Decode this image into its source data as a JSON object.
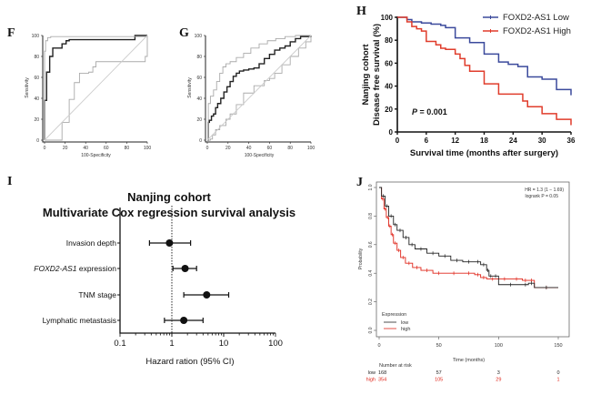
{
  "chart_data": [
    {
      "panel": "F",
      "type": "line",
      "subtype": "roc",
      "xlabel": "100-Specificity",
      "ylabel": "Sensitivity",
      "xlim": [
        0,
        100
      ],
      "ylim": [
        0,
        100
      ],
      "xticks": [
        "0",
        "20",
        "40",
        "60",
        "80",
        "100"
      ],
      "yticks": [
        "0",
        "20",
        "40",
        "60",
        "80",
        "100"
      ],
      "series": [
        {
          "name": "roc",
          "color": "#222222",
          "x": [
            0,
            0,
            2,
            2,
            5,
            5,
            8,
            8,
            11,
            11,
            17,
            17,
            21,
            21,
            24,
            24,
            88,
            88,
            100
          ],
          "y": [
            0,
            38,
            38,
            65,
            65,
            80,
            80,
            88,
            88,
            88,
            88,
            92,
            92,
            95,
            95,
            96,
            96,
            100,
            100
          ]
        },
        {
          "name": "ci-upper",
          "color": "#aaaaaa",
          "x": [
            0,
            0,
            1,
            1,
            3,
            3,
            6,
            100
          ],
          "y": [
            0,
            85,
            85,
            95,
            95,
            98,
            99,
            100
          ]
        },
        {
          "name": "ci-lower",
          "color": "#aaaaaa",
          "x": [
            0,
            17,
            17,
            24,
            24,
            29,
            29,
            34,
            34,
            43,
            43,
            47,
            47,
            50,
            50,
            98,
            98,
            100,
            100
          ],
          "y": [
            0,
            0,
            17,
            17,
            39,
            39,
            55,
            55,
            64,
            64,
            65,
            65,
            70,
            70,
            75,
            75,
            80,
            80,
            100
          ]
        },
        {
          "name": "reference",
          "color": "#cccccc",
          "x": [
            0,
            100
          ],
          "y": [
            0,
            100
          ]
        }
      ]
    },
    {
      "panel": "G",
      "type": "line",
      "subtype": "roc",
      "xlabel": "100-Specificity",
      "ylabel": "Sensitivity",
      "xlim": [
        0,
        100
      ],
      "ylim": [
        0,
        100
      ],
      "xticks": [
        "0",
        "20",
        "40",
        "60",
        "80",
        "100"
      ],
      "yticks": [
        "0",
        "20",
        "40",
        "60",
        "80",
        "100"
      ],
      "series": [
        {
          "name": "roc",
          "color": "#222222",
          "x": [
            0,
            1,
            2,
            4,
            6,
            8,
            10,
            13,
            16,
            19,
            22,
            25,
            28,
            31,
            35,
            40,
            45,
            50,
            55,
            60,
            65,
            70,
            75,
            80,
            85,
            90,
            100
          ],
          "y": [
            0,
            17,
            19,
            23,
            25,
            31,
            35,
            40,
            46,
            51,
            56,
            61,
            64,
            66,
            67,
            68,
            69,
            73,
            78,
            82,
            86,
            88,
            90,
            94,
            97,
            99,
            100
          ]
        },
        {
          "name": "ci-upper",
          "color": "#aaaaaa",
          "x": [
            0,
            1,
            3,
            6,
            9,
            12,
            15,
            18,
            22,
            28,
            35,
            42,
            50,
            58,
            66,
            75,
            85,
            95,
            100
          ],
          "y": [
            0,
            35,
            42,
            48,
            56,
            64,
            70,
            73,
            75,
            79,
            83,
            88,
            92,
            95,
            97,
            99,
            100,
            100,
            100
          ]
        },
        {
          "name": "ci-lower",
          "color": "#aaaaaa",
          "x": [
            0,
            3,
            5,
            8,
            12,
            18,
            22,
            28,
            35,
            45,
            55,
            60,
            65,
            72,
            80,
            88,
            95,
            100
          ],
          "y": [
            0,
            1,
            5,
            10,
            14,
            20,
            25,
            34,
            45,
            52,
            57,
            59,
            64,
            72,
            80,
            88,
            94,
            100
          ]
        },
        {
          "name": "reference",
          "color": "#cccccc",
          "x": [
            0,
            100
          ],
          "y": [
            0,
            100
          ]
        }
      ]
    },
    {
      "panel": "H",
      "type": "line",
      "subtype": "kaplan-meier",
      "title": "",
      "ylabel_lines": [
        "Nanjing cohort",
        "Disease free survival (%)"
      ],
      "xlabel": "Survival time (months after surgery)",
      "xlim": [
        0,
        36
      ],
      "ylim": [
        0,
        100
      ],
      "xticks": [
        "0",
        "6",
        "12",
        "18",
        "24",
        "30",
        "36"
      ],
      "yticks": [
        "0",
        "20",
        "40",
        "60",
        "80",
        "100"
      ],
      "annotation": {
        "prefix": "P",
        "text": " = 0.001"
      },
      "legend_position": "top-right",
      "series": [
        {
          "name": "FOXD2-AS1 Low",
          "color": "#3b4a9c",
          "x": [
            0,
            2,
            3,
            5,
            7,
            9,
            10,
            12,
            13,
            15,
            18,
            19,
            21,
            23,
            25,
            27,
            30,
            33,
            36,
            36
          ],
          "y": [
            100,
            98,
            96,
            95,
            94,
            93,
            91,
            82,
            82,
            78,
            68,
            68,
            61,
            59,
            57,
            48,
            46,
            37,
            37,
            32
          ]
        },
        {
          "name": "FOXD2-AS1 High",
          "color": "#e03c2b",
          "x": [
            0,
            2,
            3,
            4,
            5,
            6,
            8,
            9,
            10,
            12,
            13,
            14,
            15,
            18,
            21,
            24,
            26,
            27,
            30,
            33,
            36,
            36
          ],
          "y": [
            100,
            96,
            92,
            90,
            88,
            79,
            76,
            73,
            72,
            68,
            64,
            58,
            53,
            42,
            33,
            33,
            27,
            22,
            16,
            11,
            10,
            6
          ]
        }
      ]
    },
    {
      "panel": "I",
      "type": "scatter",
      "subtype": "forest",
      "title_lines": [
        "Nanjing cohort",
        "Multivariate Cox regression survival analysis"
      ],
      "xlabel": "Hazard ration (95% CI)",
      "xscale": "log",
      "xlim": [
        0.1,
        100
      ],
      "xticks": [
        "0.1",
        "1",
        "10",
        "100"
      ],
      "reference_line": 1,
      "rows": [
        {
          "label": "Invasion depth",
          "label_italic": "",
          "hr": 0.9,
          "lo": 0.37,
          "hi": 2.3
        },
        {
          "label": " expression",
          "label_italic": "FOXD2-AS1",
          "hr": 1.8,
          "lo": 1.05,
          "hi": 3.0
        },
        {
          "label": "TNM stage",
          "label_italic": "",
          "hr": 4.7,
          "lo": 1.7,
          "hi": 12.5
        },
        {
          "label": "Lymphatic metastasis",
          "label_italic": "",
          "hr": 1.7,
          "lo": 0.72,
          "hi": 4.0
        }
      ]
    },
    {
      "panel": "J",
      "type": "line",
      "subtype": "kaplan-meier",
      "ylabel": "Probability",
      "xlabel": "Time (months)",
      "xlim": [
        0,
        160
      ],
      "ylim": [
        0,
        1
      ],
      "xticks": [
        "0",
        "50",
        "100",
        "150"
      ],
      "yticks": [
        "0.0",
        "0.2",
        "0.4",
        "0.6",
        "0.8",
        "1.0"
      ],
      "annotation_lines": [
        "HR = 1.3 (1 − 1.69)",
        "logrank P = 0.05"
      ],
      "legend_title": "Expression",
      "legend_position": "bottom-left",
      "series": [
        {
          "name": "low",
          "color": "#222222",
          "x": [
            0,
            2,
            5,
            8,
            12,
            15,
            20,
            25,
            30,
            40,
            50,
            60,
            70,
            80,
            85,
            90,
            92,
            95,
            100,
            120,
            125,
            130,
            150
          ],
          "y": [
            1.0,
            0.94,
            0.87,
            0.8,
            0.74,
            0.7,
            0.65,
            0.6,
            0.57,
            0.54,
            0.52,
            0.49,
            0.48,
            0.48,
            0.46,
            0.42,
            0.38,
            0.38,
            0.32,
            0.32,
            0.33,
            0.3,
            0.3
          ]
        },
        {
          "name": "high",
          "color": "#e0261a",
          "x": [
            0,
            2,
            4,
            6,
            8,
            10,
            12,
            15,
            18,
            22,
            28,
            35,
            45,
            55,
            70,
            80,
            85,
            90,
            100,
            110,
            120,
            125,
            130,
            150
          ],
          "y": [
            1.0,
            0.92,
            0.85,
            0.79,
            0.73,
            0.67,
            0.61,
            0.56,
            0.51,
            0.47,
            0.44,
            0.42,
            0.4,
            0.4,
            0.4,
            0.39,
            0.37,
            0.36,
            0.36,
            0.36,
            0.35,
            0.35,
            0.3,
            0.3
          ]
        }
      ],
      "risk_table": {
        "title": "Number at risk",
        "rows": [
          {
            "label": "low",
            "color": "#222222",
            "values": [
              "168",
              "57",
              "3",
              "0"
            ]
          },
          {
            "label": "high",
            "color": "#e0261a",
            "values": [
              "354",
              "105",
              "29",
              "1"
            ]
          }
        ]
      }
    }
  ],
  "panel_labels": {
    "F": "F",
    "G": "G",
    "H": "H",
    "I": "I",
    "J": "J"
  }
}
